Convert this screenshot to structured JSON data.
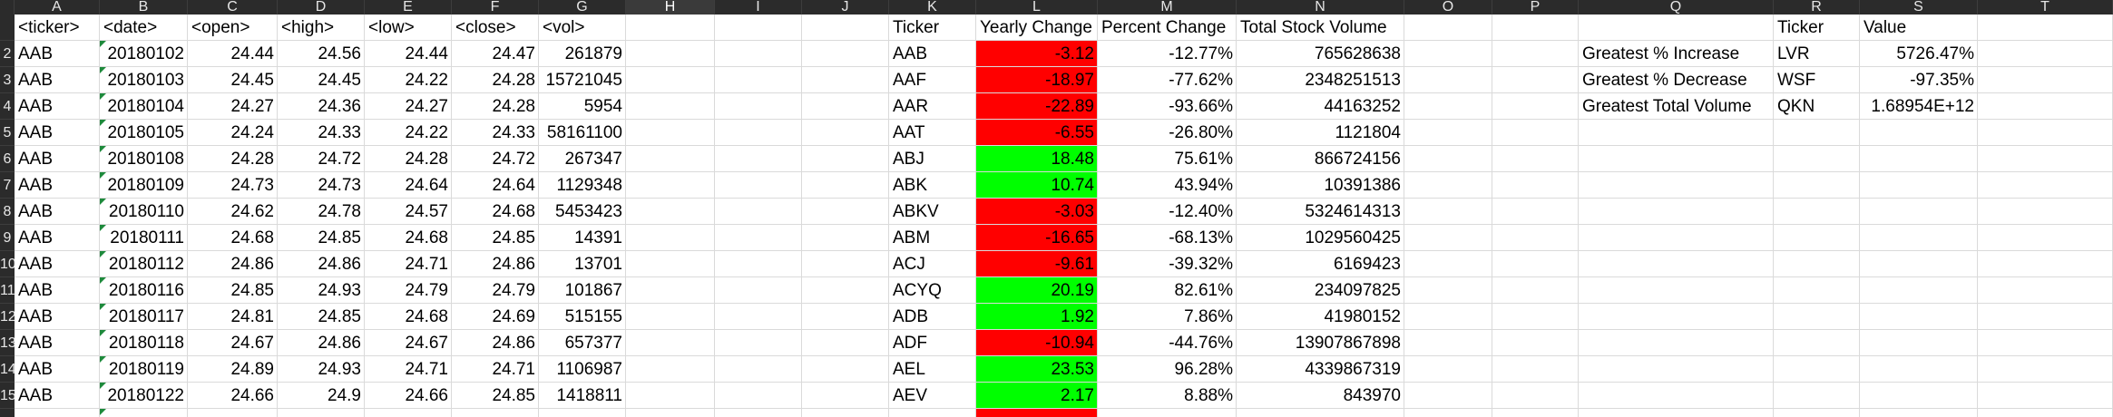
{
  "column_letters": [
    "A",
    "B",
    "C",
    "D",
    "E",
    "F",
    "G",
    "H",
    "I",
    "J",
    "K",
    "L",
    "M",
    "N",
    "O",
    "P",
    "Q",
    "R",
    "S",
    "T"
  ],
  "selected_column": "H",
  "row_numbers": [
    "",
    "2",
    "3",
    "4",
    "5",
    "6",
    "7",
    "8",
    "9",
    "10",
    "11",
    "12",
    "13",
    "14",
    "15",
    ""
  ],
  "stock_headers": [
    "<ticker>",
    "<date>",
    "<open>",
    "<high>",
    "<low>",
    "<close>",
    "<vol>"
  ],
  "stock_rows": [
    [
      "AAB",
      "20180102",
      "24.44",
      "24.56",
      "24.44",
      "24.47",
      "261879"
    ],
    [
      "AAB",
      "20180103",
      "24.45",
      "24.45",
      "24.22",
      "24.28",
      "15721045"
    ],
    [
      "AAB",
      "20180104",
      "24.27",
      "24.36",
      "24.27",
      "24.28",
      "5954"
    ],
    [
      "AAB",
      "20180105",
      "24.24",
      "24.33",
      "24.22",
      "24.33",
      "58161100"
    ],
    [
      "AAB",
      "20180108",
      "24.28",
      "24.72",
      "24.28",
      "24.72",
      "267347"
    ],
    [
      "AAB",
      "20180109",
      "24.73",
      "24.73",
      "24.64",
      "24.64",
      "1129348"
    ],
    [
      "AAB",
      "20180110",
      "24.62",
      "24.78",
      "24.57",
      "24.68",
      "5453423"
    ],
    [
      "AAB",
      "20180111",
      "24.68",
      "24.85",
      "24.68",
      "24.85",
      "14391"
    ],
    [
      "AAB",
      "20180112",
      "24.86",
      "24.86",
      "24.71",
      "24.86",
      "13701"
    ],
    [
      "AAB",
      "20180116",
      "24.85",
      "24.93",
      "24.79",
      "24.79",
      "101867"
    ],
    [
      "AAB",
      "20180117",
      "24.81",
      "24.85",
      "24.68",
      "24.69",
      "515155"
    ],
    [
      "AAB",
      "20180118",
      "24.67",
      "24.86",
      "24.67",
      "24.86",
      "657377"
    ],
    [
      "AAB",
      "20180119",
      "24.89",
      "24.93",
      "24.71",
      "24.71",
      "1106987"
    ],
    [
      "AAB",
      "20180122",
      "24.66",
      "24.9",
      "24.66",
      "24.85",
      "1418811"
    ]
  ],
  "summary_headers": [
    "Ticker",
    "Yearly Change",
    "Percent Change",
    "Total Stock Volume"
  ],
  "summary_rows": [
    {
      "ticker": "AAB",
      "yearly_change": "-3.12",
      "percent_change": "-12.77%",
      "total_volume": "765628638",
      "status": "negative"
    },
    {
      "ticker": "AAF",
      "yearly_change": "-18.97",
      "percent_change": "-77.62%",
      "total_volume": "2348251513",
      "status": "negative"
    },
    {
      "ticker": "AAR",
      "yearly_change": "-22.89",
      "percent_change": "-93.66%",
      "total_volume": "44163252",
      "status": "negative"
    },
    {
      "ticker": "AAT",
      "yearly_change": "-6.55",
      "percent_change": "-26.80%",
      "total_volume": "1121804",
      "status": "negative"
    },
    {
      "ticker": "ABJ",
      "yearly_change": "18.48",
      "percent_change": "75.61%",
      "total_volume": "866724156",
      "status": "positive"
    },
    {
      "ticker": "ABK",
      "yearly_change": "10.74",
      "percent_change": "43.94%",
      "total_volume": "10391386",
      "status": "positive"
    },
    {
      "ticker": "ABKV",
      "yearly_change": "-3.03",
      "percent_change": "-12.40%",
      "total_volume": "5324614313",
      "status": "negative"
    },
    {
      "ticker": "ABM",
      "yearly_change": "-16.65",
      "percent_change": "-68.13%",
      "total_volume": "1029560425",
      "status": "negative"
    },
    {
      "ticker": "ACJ",
      "yearly_change": "-9.61",
      "percent_change": "-39.32%",
      "total_volume": "6169423",
      "status": "negative"
    },
    {
      "ticker": "ACYQ",
      "yearly_change": "20.19",
      "percent_change": "82.61%",
      "total_volume": "234097825",
      "status": "positive"
    },
    {
      "ticker": "ADB",
      "yearly_change": "1.92",
      "percent_change": "7.86%",
      "total_volume": "41980152",
      "status": "positive"
    },
    {
      "ticker": "ADF",
      "yearly_change": "-10.94",
      "percent_change": "-44.76%",
      "total_volume": "13907867898",
      "status": "negative"
    },
    {
      "ticker": "AEL",
      "yearly_change": "23.53",
      "percent_change": "96.28%",
      "total_volume": "4339867319",
      "status": "positive"
    },
    {
      "ticker": "AEV",
      "yearly_change": "2.17",
      "percent_change": "8.88%",
      "total_volume": "843970",
      "status": "positive"
    }
  ],
  "greatest_headers": [
    "Ticker",
    "Value"
  ],
  "greatest_rows": [
    {
      "label": "Greatest % Increase",
      "ticker": "LVR",
      "value": "5726.47%"
    },
    {
      "label": "Greatest % Decrease",
      "ticker": "WSF",
      "value": "-97.35%"
    },
    {
      "label": "Greatest Total Volume",
      "ticker": "QKN",
      "value": "1.68954E+12"
    }
  ],
  "colors": {
    "positive_fill": "#00ff00",
    "negative_fill": "#ff0000",
    "header_bg": "#2b2b2b",
    "gridline": "#dadada",
    "error_triangle": "#1e8a3c"
  }
}
